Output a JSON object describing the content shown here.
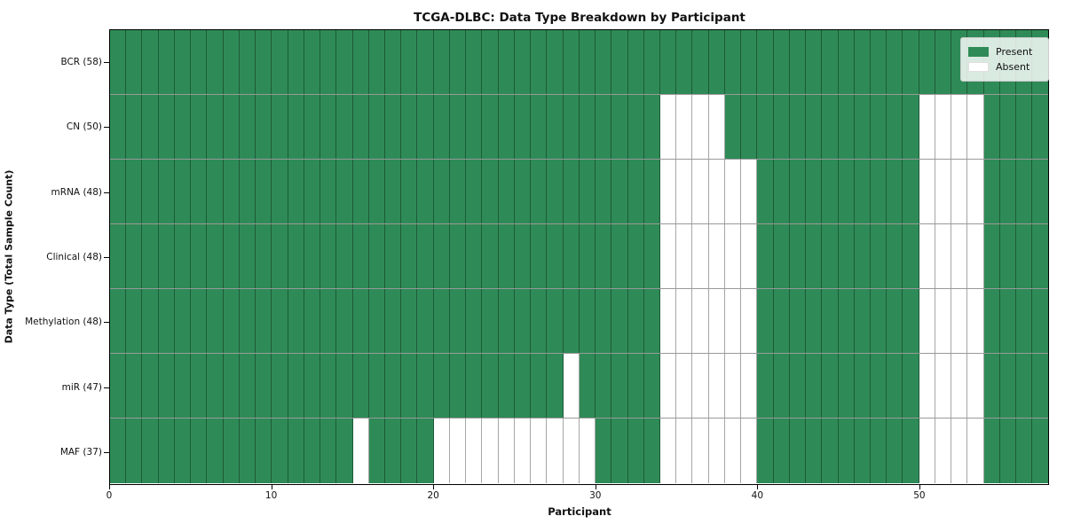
{
  "chart_data": {
    "type": "heatmap",
    "title": "TCGA-DLBC: Data Type Breakdown by Participant",
    "xlabel": "Participant",
    "ylabel": "Data Type (Total Sample Count)",
    "n_participants": 58,
    "x_ticks": [
      0,
      10,
      20,
      30,
      40,
      50
    ],
    "grid": "cell-borders",
    "legend_position": "upper-right",
    "colors": {
      "present": "#2e8b57",
      "absent": "#ffffff",
      "cell_edge": "rgba(0,0,0,0.35)"
    },
    "legend": [
      {
        "label": "Present",
        "color": "#2e8b57"
      },
      {
        "label": "Absent",
        "color": "#ffffff"
      }
    ],
    "rows": [
      {
        "label": "BCR (58)",
        "total": 58,
        "absent": []
      },
      {
        "label": "CN (50)",
        "total": 50,
        "absent": [
          34,
          35,
          36,
          37,
          50,
          51,
          52,
          53
        ]
      },
      {
        "label": "mRNA (48)",
        "total": 48,
        "absent": [
          34,
          35,
          36,
          37,
          38,
          39,
          50,
          51,
          52,
          53
        ]
      },
      {
        "label": "Clinical (48)",
        "total": 48,
        "absent": [
          34,
          35,
          36,
          37,
          38,
          39,
          50,
          51,
          52,
          53
        ]
      },
      {
        "label": "Methylation (48)",
        "total": 48,
        "absent": [
          34,
          35,
          36,
          37,
          38,
          39,
          50,
          51,
          52,
          53
        ]
      },
      {
        "label": "miR (47)",
        "total": 47,
        "absent": [
          28,
          34,
          35,
          36,
          37,
          38,
          39,
          50,
          51,
          52,
          53
        ]
      },
      {
        "label": "MAF (37)",
        "total": 37,
        "absent": [
          15,
          20,
          21,
          22,
          23,
          24,
          25,
          26,
          27,
          28,
          29,
          34,
          35,
          36,
          37,
          38,
          39,
          50,
          51,
          52,
          53
        ]
      }
    ]
  }
}
